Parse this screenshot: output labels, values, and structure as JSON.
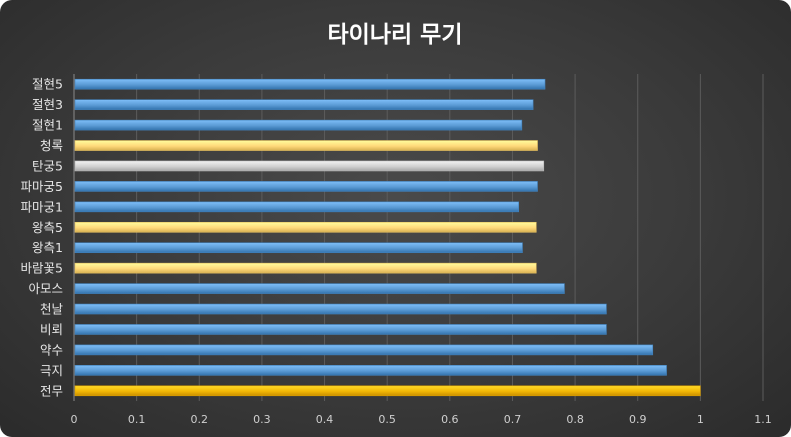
{
  "chart_data": {
    "type": "bar",
    "orientation": "horizontal",
    "title": "타이나리 무기",
    "xlabel": "",
    "ylabel": "",
    "xlim": [
      0,
      1.1
    ],
    "x_ticks": [
      "0",
      "0.1",
      "0.2",
      "0.3",
      "0.4",
      "0.5",
      "0.6",
      "0.7",
      "0.8",
      "0.9",
      "1",
      "1.1"
    ],
    "grid": true,
    "categories": [
      "전무",
      "극지",
      "약수",
      "비뢰",
      "천날",
      "아모스",
      "바람꽃5",
      "왕측1",
      "왕측5",
      "파마궁1",
      "파마궁5",
      "탄궁5",
      "청록",
      "절현1",
      "절현3",
      "절현5"
    ],
    "values": [
      1.0,
      0.946,
      0.924,
      0.85,
      0.85,
      0.783,
      0.738,
      0.716,
      0.738,
      0.71,
      0.74,
      0.75,
      0.74,
      0.715,
      0.733,
      0.752
    ],
    "colors": [
      "#f2b705",
      "#5b9bd5",
      "#5b9bd5",
      "#5b9bd5",
      "#5b9bd5",
      "#5b9bd5",
      "#ffd97a",
      "#5b9bd5",
      "#ffd97a",
      "#5b9bd5",
      "#5b9bd5",
      "#d0d0d0",
      "#ffd97a",
      "#5b9bd5",
      "#5b9bd5",
      "#5b9bd5"
    ]
  }
}
